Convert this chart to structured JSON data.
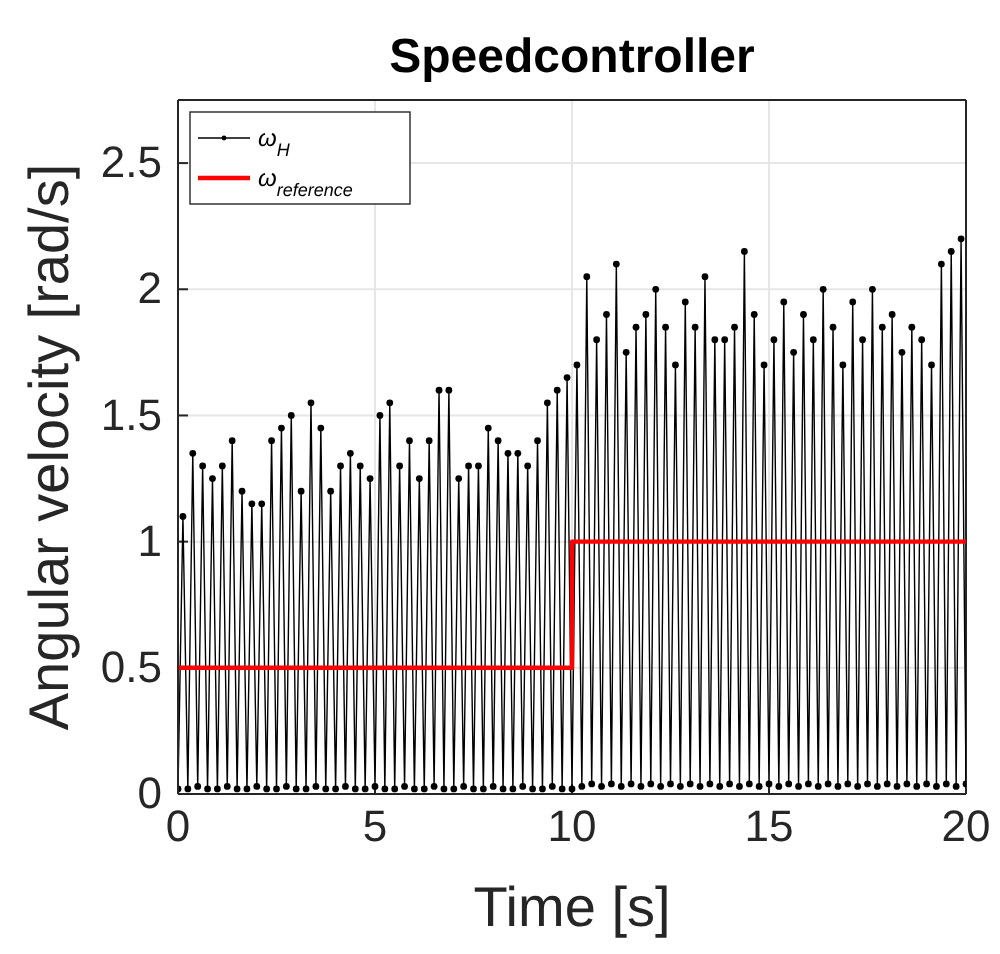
{
  "chart_data": {
    "type": "line",
    "title": "Speedcontroller",
    "xlabel": "Time [s]",
    "ylabel": "Angular velocity [rad/s]",
    "xlim": [
      0,
      20
    ],
    "ylim": [
      0,
      2.75
    ],
    "xticks": [
      0,
      5,
      10,
      15,
      20
    ],
    "yticks": [
      0,
      0.5,
      1,
      1.5,
      2,
      2.5
    ],
    "grid": true,
    "legend": "top left",
    "series": [
      {
        "name": "ω$_{H}$",
        "color": "#000000",
        "marker": "circle",
        "x": [
          0,
          0.125,
          0.25,
          0.375,
          0.5,
          0.625,
          0.75,
          0.875,
          1,
          1.125,
          1.25,
          1.375,
          1.5,
          1.625,
          1.75,
          1.875,
          2,
          2.125,
          2.25,
          2.375,
          2.5,
          2.625,
          2.75,
          2.875,
          3,
          3.125,
          3.25,
          3.375,
          3.5,
          3.625,
          3.75,
          3.875,
          4,
          4.125,
          4.25,
          4.375,
          4.5,
          4.625,
          4.75,
          4.875,
          5,
          5.125,
          5.25,
          5.375,
          5.5,
          5.625,
          5.75,
          5.875,
          6,
          6.125,
          6.25,
          6.375,
          6.5,
          6.625,
          6.75,
          6.875,
          7,
          7.125,
          7.25,
          7.375,
          7.5,
          7.625,
          7.75,
          7.875,
          8,
          8.125,
          8.25,
          8.375,
          8.5,
          8.625,
          8.75,
          8.875,
          9,
          9.125,
          9.25,
          9.375,
          9.5,
          9.625,
          9.75,
          9.875,
          10,
          10.125,
          10.25,
          10.375,
          10.5,
          10.625,
          10.75,
          10.875,
          11,
          11.125,
          11.25,
          11.375,
          11.5,
          11.625,
          11.75,
          11.875,
          12,
          12.125,
          12.25,
          12.375,
          12.5,
          12.625,
          12.75,
          12.875,
          13,
          13.125,
          13.25,
          13.375,
          13.5,
          13.625,
          13.75,
          13.875,
          14,
          14.125,
          14.25,
          14.375,
          14.5,
          14.625,
          14.75,
          14.875,
          15,
          15.125,
          15.25,
          15.375,
          15.5,
          15.625,
          15.75,
          15.875,
          16,
          16.125,
          16.25,
          16.375,
          16.5,
          16.625,
          16.75,
          16.875,
          17,
          17.125,
          17.25,
          17.375,
          17.5,
          17.625,
          17.75,
          17.875,
          18,
          18.125,
          18.25,
          18.375,
          18.5,
          18.625,
          18.75,
          18.875,
          19,
          19.125,
          19.25,
          19.375,
          19.5,
          19.625,
          19.75,
          19.875,
          20
        ],
        "values": [
          0.02,
          1.1,
          0.02,
          1.35,
          0.03,
          1.3,
          0.02,
          1.25,
          0.02,
          1.3,
          0.03,
          1.4,
          0.02,
          1.2,
          0.02,
          1.15,
          0.03,
          1.15,
          0.02,
          1.4,
          0.02,
          1.45,
          0.03,
          1.5,
          0.02,
          1.2,
          0.02,
          1.55,
          0.03,
          1.45,
          0.02,
          1.2,
          0.02,
          1.3,
          0.03,
          1.35,
          0.02,
          1.3,
          0.02,
          1.25,
          0.03,
          1.5,
          0.02,
          1.55,
          0.02,
          1.3,
          0.03,
          1.4,
          0.02,
          1.25,
          0.02,
          1.4,
          0.03,
          1.6,
          0.02,
          1.6,
          0.02,
          1.25,
          0.03,
          1.3,
          0.02,
          1.3,
          0.02,
          1.45,
          0.03,
          1.4,
          0.02,
          1.35,
          0.02,
          1.35,
          0.03,
          1.3,
          0.02,
          1.4,
          0.02,
          1.55,
          0.03,
          1.6,
          0.02,
          1.65,
          0.02,
          1.7,
          0.03,
          2.05,
          0.04,
          1.8,
          0.03,
          1.9,
          0.04,
          2.1,
          0.03,
          1.75,
          0.04,
          1.85,
          0.03,
          1.9,
          0.04,
          2.0,
          0.03,
          1.85,
          0.04,
          1.7,
          0.03,
          1.95,
          0.04,
          1.85,
          0.03,
          2.05,
          0.04,
          1.8,
          0.03,
          1.8,
          0.04,
          1.85,
          0.03,
          2.15,
          0.04,
          1.9,
          0.03,
          1.7,
          0.04,
          1.8,
          0.03,
          1.95,
          0.04,
          1.75,
          0.03,
          1.9,
          0.04,
          1.8,
          0.03,
          2.0,
          0.04,
          1.85,
          0.03,
          1.7,
          0.04,
          1.95,
          0.03,
          1.8,
          0.04,
          2.0,
          0.03,
          1.85,
          0.04,
          1.9,
          0.03,
          1.75,
          0.04,
          1.85,
          0.03,
          1.8,
          0.04,
          1.7,
          0.03,
          2.1,
          0.04,
          2.15,
          0.03,
          2.2,
          0.04
        ]
      },
      {
        "name": "ω$_{reference}$",
        "color": "#ff0000",
        "type": "step",
        "marker": "none",
        "x": [
          0,
          10,
          20
        ],
        "values": [
          0.5,
          1,
          1
        ]
      }
    ]
  }
}
